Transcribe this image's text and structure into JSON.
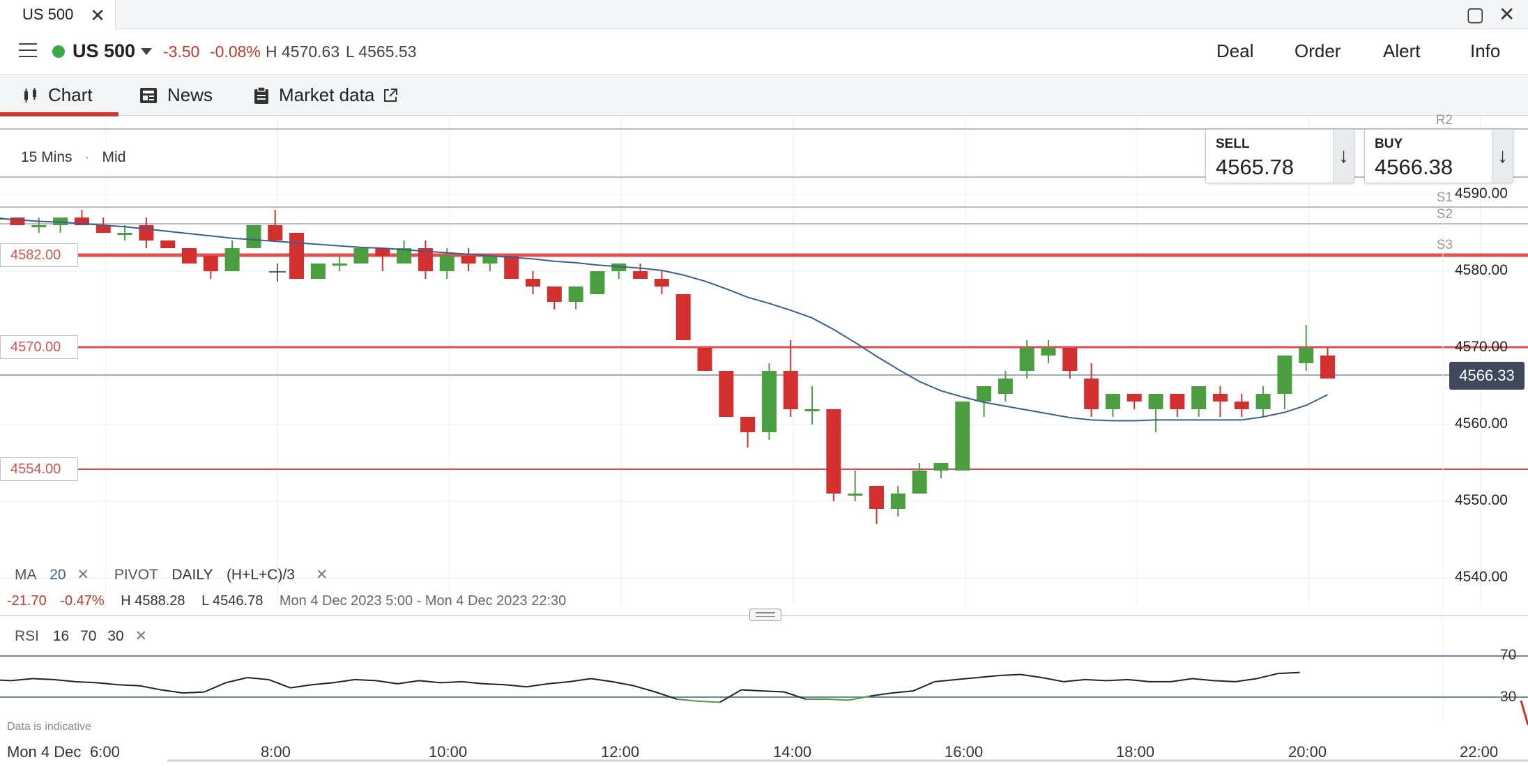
{
  "window": {
    "tab_title": "US 500"
  },
  "instrument": {
    "name": "US 500",
    "change": "-3.50",
    "change_pct": "-0.08%",
    "high": "H 4570.63",
    "low": "L 4565.53"
  },
  "actions": [
    "Deal",
    "Order",
    "Alert",
    "Info"
  ],
  "tabs": {
    "chart": "Chart",
    "news": "News",
    "market": "Market data"
  },
  "timeframe": {
    "interval": "15 Mins",
    "price_type": "Mid"
  },
  "deal": {
    "sell_label": "SELL",
    "sell_price": "4565.78",
    "buy_label": "BUY",
    "buy_price": "4566.38"
  },
  "levels": {
    "l1": "4582.00",
    "l2": "4570.00",
    "l3": "4554.00"
  },
  "pivots": [
    "R2",
    "S1",
    "S2",
    "S3"
  ],
  "y_axis": [
    "4590.00",
    "4580.00",
    "4570.00",
    "4560.00",
    "4550.00",
    "4540.00"
  ],
  "current_price": "4566.33",
  "x_axis": [
    "6:00",
    "8:00",
    "10:00",
    "12:00",
    "14:00",
    "16:00",
    "18:00",
    "20:00",
    "22:00"
  ],
  "date_label": "Mon 4 Dec",
  "indicators": {
    "ma_label": "MA",
    "ma_period": "20",
    "pivot_label": "PIVOT",
    "pivot_period": "DAILY",
    "pivot_formula": "(H+L+C)/3"
  },
  "session": {
    "change": "-21.70",
    "change_pct": "-0.47%",
    "high": "H 4588.28",
    "low": "L 4546.78",
    "range": "Mon 4 Dec 2023 5:00 - Mon 4 Dec 2023 22:30"
  },
  "rsi": {
    "label": "RSI",
    "period": "16",
    "upper": "70",
    "lower": "30",
    "upper_label": "70",
    "lower_label": "30"
  },
  "notice": "Data is indicative",
  "colors": {
    "up": "#4a9e3f",
    "down": "#d32f2f",
    "ma": "#3a5f8f",
    "level": "#e05050"
  },
  "chart_data": {
    "type": "candlestick",
    "interval_minutes": 15,
    "first_candle_time": "5:15",
    "candles": [
      [
        4589,
        4590,
        4586,
        4587
      ],
      [
        4588,
        4589,
        4586,
        4586
      ],
      [
        4587,
        4588,
        4586,
        4587
      ],
      [
        4587,
        4587,
        4586,
        4586
      ],
      [
        4586,
        4587,
        4585,
        4586
      ],
      [
        4586,
        4587,
        4585,
        4587
      ],
      [
        4587,
        4588,
        4586,
        4586
      ],
      [
        4586,
        4587,
        4585,
        4585
      ],
      [
        4585,
        4586,
        4584,
        4585
      ],
      [
        4586,
        4587,
        4583,
        4584
      ],
      [
        4584,
        4584,
        4583,
        4583
      ],
      [
        4583,
        4583,
        4581,
        4581
      ],
      [
        4582,
        4582,
        4579,
        4580
      ],
      [
        4580,
        4584,
        4580,
        4583
      ],
      [
        4583,
        4586,
        4583,
        4586
      ],
      [
        4586,
        4588,
        4584,
        4584
      ],
      [
        4585,
        4585,
        4579,
        4579
      ],
      [
        4579,
        4581,
        4579,
        4581
      ],
      [
        4581,
        4582,
        4580,
        4581
      ],
      [
        4581,
        4583,
        4581,
        4583
      ],
      [
        4583,
        4583,
        4580,
        4582
      ],
      [
        4581,
        4584,
        4581,
        4583
      ],
      [
        4583,
        4584,
        4579,
        4580
      ],
      [
        4580,
        4583,
        4579,
        4582
      ],
      [
        4582,
        4583,
        4580,
        4581
      ],
      [
        4581,
        4582,
        4580,
        4582
      ],
      [
        4582,
        4582,
        4579,
        4579
      ],
      [
        4579,
        4580,
        4577,
        4578
      ],
      [
        4578,
        4578,
        4575,
        4576
      ],
      [
        4576,
        4578,
        4575,
        4578
      ],
      [
        4577,
        4580,
        4577,
        4580
      ],
      [
        4580,
        4581,
        4579,
        4581
      ],
      [
        4580,
        4581,
        4579,
        4579
      ],
      [
        4579,
        4580,
        4577,
        4578
      ],
      [
        4577,
        4577,
        4571,
        4571
      ],
      [
        4570,
        4570,
        4567,
        4567
      ],
      [
        4567,
        4567,
        4561,
        4561
      ],
      [
        4561,
        4561,
        4557,
        4559
      ],
      [
        4559,
        4568,
        4558,
        4567
      ],
      [
        4567,
        4571,
        4561,
        4562
      ],
      [
        4562,
        4565,
        4560,
        4562
      ],
      [
        4562,
        4562,
        4550,
        4551
      ],
      [
        4551,
        4554,
        4550,
        4551
      ],
      [
        4552,
        4552,
        4547,
        4549
      ],
      [
        4549,
        4552,
        4548,
        4551
      ],
      [
        4551,
        4555,
        4551,
        4554
      ],
      [
        4554,
        4555,
        4553,
        4555
      ],
      [
        4554,
        4563,
        4554,
        4563
      ],
      [
        4563,
        4565,
        4561,
        4565
      ],
      [
        4564,
        4567,
        4563,
        4566
      ],
      [
        4567,
        4571,
        4566,
        4570
      ],
      [
        4569,
        4571,
        4568,
        4570
      ],
      [
        4570,
        4570,
        4566,
        4567
      ],
      [
        4566,
        4568,
        4561,
        4562
      ],
      [
        4562,
        4564,
        4561,
        4564
      ],
      [
        4564,
        4564,
        4562,
        4563
      ],
      [
        4562,
        4564,
        4559,
        4564
      ],
      [
        4564,
        4564,
        4561,
        4562
      ],
      [
        4562,
        4565,
        4561,
        4565
      ],
      [
        4564,
        4565,
        4561,
        4563
      ],
      [
        4563,
        4564,
        4561,
        4562
      ],
      [
        4562,
        4565,
        4561,
        4564
      ],
      [
        4564,
        4569,
        4562,
        4569
      ],
      [
        4568,
        4573,
        4567,
        4570
      ],
      [
        4569,
        4570,
        4566,
        4566
      ]
    ],
    "ma_values": [
      4587.3,
      4587.1,
      4586.9,
      4586.7,
      4586.5,
      4586.4,
      4586.2,
      4586.0,
      4585.8,
      4585.5,
      4585.2,
      4584.9,
      4584.6,
      4584.3,
      4584.1,
      4583.9,
      4583.7,
      4583.5,
      4583.3,
      4583.1,
      4583.0,
      4582.8,
      4582.6,
      4582.4,
      4582.2,
      4582.0,
      4581.8,
      4581.6,
      4581.3,
      4581.1,
      4580.8,
      4580.6,
      4580.4,
      4580.1,
      4579.5,
      4578.7,
      4577.7,
      4576.6,
      4575.8,
      4574.9,
      4573.9,
      4572.4,
      4570.7,
      4568.9,
      4567.2,
      4565.6,
      4564.4,
      4563.6,
      4562.9,
      4562.4,
      4561.9,
      4561.4,
      4560.9,
      4560.6,
      4560.5,
      4560.5,
      4560.6,
      4560.6,
      4560.6,
      4560.6,
      4560.6,
      4561.0,
      4561.6,
      4562.5,
      4563.9
    ],
    "y_range": [
      4535,
      4595
    ],
    "rsi_values": [
      51,
      48,
      47,
      47,
      46,
      48,
      47,
      45,
      44,
      42,
      41,
      37,
      34,
      35,
      44,
      49,
      47,
      39,
      42,
      44,
      47,
      46,
      43,
      46,
      44,
      45,
      43,
      42,
      40,
      43,
      45,
      48,
      45,
      41,
      35,
      28,
      26,
      25,
      37,
      36,
      35,
      28,
      28,
      27,
      31,
      34,
      36,
      45,
      47,
      49,
      51,
      52,
      49,
      45,
      47,
      46,
      47,
      45,
      45,
      48,
      46,
      45,
      48,
      53,
      54
    ],
    "rsi_range": [
      0,
      100
    ]
  }
}
